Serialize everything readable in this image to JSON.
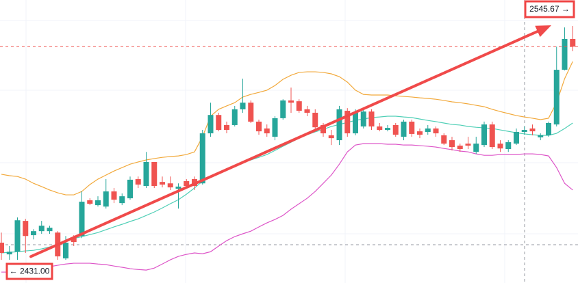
{
  "chart_data": {
    "type": "candlestick",
    "ylim": [
      2417.9,
      2558.2
    ],
    "up_color": "#26a69a",
    "down_color": "#ef5350",
    "open": [
      2437.9,
      2432.1,
      2433.4,
      2448.7,
      2441.6,
      2443.6,
      2443.6,
      2442.9,
      2430.1,
      2440.2,
      2441.2,
      2458.9,
      2456.5,
      2455.8,
      2463.3,
      2457.5,
      2459.9,
      2469.4,
      2466.0,
      2477.9,
      2468.0,
      2467.3,
      2464.6,
      2468.4,
      2469.4,
      2467.3,
      2492.1,
      2501.2,
      2496.2,
      2496.2,
      2504.0,
      2507.3,
      2497.9,
      2494.5,
      2490.4,
      2499.6,
      2508.4,
      2508.0,
      2504.0,
      2502.3,
      2496.2,
      2491.1,
      2488.7,
      2503.3,
      2492.1,
      2495.5,
      2502.9,
      2495.5,
      2493.8,
      2496.2,
      2490.4,
      2497.9,
      2493.1,
      2492.8,
      2494.5,
      2491.1,
      2488.7,
      2486.0,
      2487.0,
      2482.9,
      2486.3,
      2496.5,
      2487.0,
      2484.3,
      2487.0,
      2492.8,
      2494.5,
      2490.1,
      2491.1,
      2496.5,
      2523.6,
      2538.9
    ],
    "high": [
      2442.9,
      2436.2,
      2450.4,
      2449.7,
      2444.6,
      2448.7,
      2446.3,
      2443.6,
      2441.2,
      2441.6,
      2463.3,
      2459.9,
      2460.9,
      2469.4,
      2465.0,
      2462.3,
      2470.7,
      2470.7,
      2482.9,
      2477.9,
      2470.7,
      2470.7,
      2467.3,
      2469.4,
      2470.7,
      2493.8,
      2507.3,
      2502.3,
      2497.9,
      2505.7,
      2519.2,
      2508.4,
      2498.9,
      2496.5,
      2500.6,
      2509.0,
      2514.8,
      2509.0,
      2505.7,
      2504.0,
      2497.2,
      2493.8,
      2505.7,
      2504.6,
      2504.0,
      2504.0,
      2504.0,
      2497.2,
      2496.2,
      2497.2,
      2498.9,
      2498.9,
      2494.5,
      2496.2,
      2495.5,
      2492.1,
      2490.4,
      2487.0,
      2490.4,
      2490.4,
      2497.9,
      2497.9,
      2488.7,
      2488.7,
      2494.5,
      2495.5,
      2496.5,
      2492.1,
      2497.9,
      2535.1,
      2544.6,
      2545.3
    ],
    "low": [
      2429.4,
      2429.4,
      2429.4,
      2432.8,
      2439.5,
      2442.3,
      2442.3,
      2429.4,
      2429.4,
      2436.2,
      2440.2,
      2456.5,
      2455.8,
      2454.8,
      2457.5,
      2456.5,
      2459.2,
      2465.0,
      2465.0,
      2465.0,
      2465.3,
      2464.0,
      2454.8,
      2465.0,
      2464.0,
      2466.7,
      2490.4,
      2493.1,
      2492.1,
      2495.5,
      2502.3,
      2497.2,
      2491.4,
      2490.4,
      2488.7,
      2498.9,
      2502.3,
      2502.3,
      2500.6,
      2493.8,
      2490.4,
      2486.3,
      2486.3,
      2490.4,
      2491.1,
      2494.5,
      2493.8,
      2493.1,
      2493.1,
      2490.4,
      2488.7,
      2490.4,
      2489.7,
      2491.4,
      2490.4,
      2486.3,
      2483.6,
      2482.9,
      2484.3,
      2481.9,
      2485.3,
      2484.3,
      2482.9,
      2482.9,
      2486.3,
      2491.4,
      2491.1,
      2488.7,
      2490.4,
      2495.5,
      2523.3,
      2532.8
    ],
    "close": [
      2432.8,
      2433.4,
      2449.0,
      2441.2,
      2443.6,
      2446.3,
      2445.3,
      2431.1,
      2437.9,
      2438.2,
      2458.2,
      2457.2,
      2458.9,
      2463.3,
      2459.2,
      2460.9,
      2469.1,
      2466.7,
      2477.9,
      2466.0,
      2466.7,
      2465.3,
      2465.7,
      2466.0,
      2466.0,
      2492.1,
      2501.2,
      2493.8,
      2493.8,
      2504.0,
      2507.3,
      2497.9,
      2493.1,
      2492.1,
      2499.6,
      2508.4,
      2507.3,
      2503.3,
      2502.3,
      2495.1,
      2492.1,
      2489.7,
      2504.0,
      2492.1,
      2502.3,
      2502.9,
      2495.5,
      2493.8,
      2494.8,
      2491.4,
      2497.9,
      2491.8,
      2491.4,
      2494.5,
      2492.1,
      2487.0,
      2485.3,
      2484.3,
      2486.0,
      2487.0,
      2496.5,
      2485.3,
      2484.6,
      2487.7,
      2492.8,
      2493.8,
      2493.1,
      2491.1,
      2497.2,
      2523.6,
      2538.9,
      2535.1
    ],
    "bands": {
      "upper": {
        "color": "#f2a93b",
        "values": [
          2471.8,
          2471.1,
          2470.7,
          2469.4,
          2467.3,
          2465.7,
          2464.0,
          2462.6,
          2461.6,
          2461.6,
          2463.3,
          2466.7,
          2469.4,
          2471.4,
          2473.4,
          2475.1,
          2476.8,
          2477.9,
          2478.9,
          2479.6,
          2480.2,
          2480.6,
          2480.9,
          2481.6,
          2482.9,
          2490.4,
          2500.6,
          2504.0,
          2505.7,
          2507.3,
          2510.1,
          2511.4,
          2512.4,
          2513.5,
          2515.8,
          2518.9,
          2520.9,
          2522.3,
          2522.6,
          2522.6,
          2522.3,
          2521.6,
          2520.2,
          2517.5,
          2513.5,
          2511.4,
          2511.1,
          2511.1,
          2511.1,
          2510.7,
          2510.4,
          2510.1,
          2509.7,
          2509.4,
          2509.0,
          2508.4,
          2507.7,
          2507.3,
          2506.7,
          2506.0,
          2505.3,
          2504.0,
          2502.9,
          2501.9,
          2500.9,
          2500.2,
          2499.6,
          2498.9,
          2499.6,
          2507.3,
          2519.2,
          2527.7
        ]
      },
      "middle": {
        "color": "#4fcfb6",
        "values": [
          2432.8,
          2433.1,
          2433.4,
          2433.8,
          2434.1,
          2434.8,
          2435.8,
          2437.2,
          2438.5,
          2439.9,
          2440.9,
          2441.9,
          2442.9,
          2444.3,
          2445.7,
          2447.0,
          2448.4,
          2449.7,
          2451.4,
          2453.1,
          2455.1,
          2457.2,
          2459.2,
          2461.9,
          2465.0,
          2468.4,
          2470.7,
          2472.8,
          2474.5,
          2476.2,
          2477.5,
          2478.9,
          2480.2,
          2481.6,
          2483.6,
          2485.7,
          2487.7,
          2489.7,
          2491.4,
          2492.8,
          2494.1,
          2495.5,
          2496.5,
          2497.5,
          2498.5,
          2499.2,
          2499.9,
          2500.2,
          2500.6,
          2500.6,
          2500.2,
          2499.9,
          2499.2,
          2498.5,
          2497.9,
          2497.2,
          2496.5,
          2496.2,
          2495.5,
          2495.1,
          2494.8,
          2494.5,
          2493.8,
          2493.1,
          2492.4,
          2491.8,
          2491.4,
          2491.1,
          2491.1,
          2492.1,
          2494.5,
          2497.2
        ]
      },
      "lower": {
        "color": "#dd55c8",
        "values": [
          2423.3,
          2423.3,
          2423.6,
          2424.0,
          2424.6,
          2425.3,
          2426.0,
          2426.7,
          2427.3,
          2427.7,
          2427.7,
          2427.7,
          2427.3,
          2427.0,
          2426.3,
          2425.7,
          2425.0,
          2424.6,
          2424.3,
          2425.3,
          2427.3,
          2429.4,
          2431.1,
          2432.1,
          2432.8,
          2432.4,
          2433.4,
          2436.2,
          2438.9,
          2440.9,
          2442.3,
          2443.6,
          2445.7,
          2447.7,
          2449.4,
          2451.4,
          2454.5,
          2457.2,
          2459.9,
          2463.3,
          2467.3,
          2471.4,
          2476.8,
          2482.9,
          2486.3,
          2487.0,
          2487.0,
          2487.0,
          2486.7,
          2486.7,
          2486.3,
          2486.3,
          2486.0,
          2485.7,
          2485.3,
          2484.6,
          2484.0,
          2483.3,
          2482.9,
          2481.9,
          2481.2,
          2481.2,
          2481.6,
          2481.6,
          2481.6,
          2481.9,
          2481.9,
          2481.6,
          2480.9,
          2475.1,
          2467.3,
          2464.0
        ]
      }
    },
    "arrow": {
      "color": "#f04a4a",
      "start": {
        "value": 2431.0,
        "label": "← 2431.00"
      },
      "end": {
        "value": 2545.67,
        "label": "2545.67 →"
      }
    }
  }
}
